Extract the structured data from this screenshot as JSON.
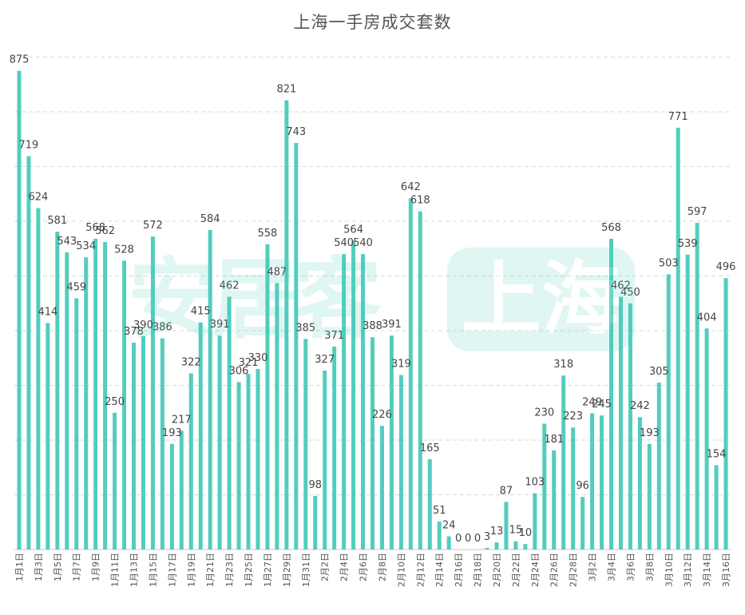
{
  "chart_data": {
    "type": "bar",
    "title": "上海一手房成交套数",
    "watermark_left": "安居客",
    "watermark_right": "上海",
    "xlabel": "",
    "ylabel": "",
    "ylim": [
      0,
      1000
    ],
    "grid": true,
    "bar_color": "#52cdbd",
    "categories": [
      "1月1日",
      "1月2日",
      "1月3日",
      "1月4日",
      "1月5日",
      "1月6日",
      "1月7日",
      "1月8日",
      "1月9日",
      "1月10日",
      "1月11日",
      "1月12日",
      "1月13日",
      "1月14日",
      "1月15日",
      "1月16日",
      "1月17日",
      "1月18日",
      "1月19日",
      "1月20日",
      "1月21日",
      "1月22日",
      "1月23日",
      "1月24日",
      "1月25日",
      "1月26日",
      "1月27日",
      "1月28日",
      "1月29日",
      "1月30日",
      "1月31日",
      "2月1日",
      "2月2日",
      "2月3日",
      "2月4日",
      "2月5日",
      "2月6日",
      "2月7日",
      "2月8日",
      "2月9日",
      "2月10日",
      "2月11日",
      "2月12日",
      "2月13日",
      "2月14日",
      "2月15日",
      "2月16日",
      "2月17日",
      "2月18日",
      "2月19日",
      "2月20日",
      "2月21日",
      "2月22日",
      "2月23日",
      "2月24日",
      "2月25日",
      "2月26日",
      "2月27日",
      "2月28日",
      "3月1日",
      "3月2日",
      "3月3日",
      "3月4日",
      "3月5日",
      "3月6日",
      "3月7日",
      "3月8日",
      "3月9日",
      "3月10日",
      "3月11日",
      "3月12日",
      "3月13日",
      "3月14日",
      "3月15日",
      "3月16日"
    ],
    "values": [
      875,
      719,
      624,
      414,
      581,
      543,
      459,
      534,
      568,
      562,
      250,
      528,
      378,
      390,
      572,
      386,
      193,
      217,
      322,
      415,
      584,
      391,
      462,
      306,
      321,
      330,
      558,
      487,
      821,
      743,
      385,
      98,
      327,
      371,
      540,
      564,
      540,
      388,
      226,
      391,
      319,
      642,
      618,
      165,
      51,
      24,
      0,
      0,
      0,
      3,
      13,
      87,
      15,
      10,
      103,
      230,
      181,
      318,
      223,
      96,
      249,
      245,
      568,
      462,
      450,
      242,
      193,
      305,
      503,
      771,
      539,
      597,
      404,
      154,
      496
    ],
    "tick_labels": [
      "1月1日",
      "1月3日",
      "1月5日",
      "1月7日",
      "1月9日",
      "1月11日",
      "1月13日",
      "1月15日",
      "1月17日",
      "1月19日",
      "1月21日",
      "1月23日",
      "1月25日",
      "1月27日",
      "1月29日",
      "1月31日",
      "2月2日",
      "2月4日",
      "2月6日",
      "2月8日",
      "2月10日",
      "2月12日",
      "2月14日",
      "2月16日",
      "2月18日",
      "2月20日",
      "2月22日",
      "2月24日",
      "2月26日",
      "2月28日",
      "3月2日",
      "3月4日",
      "3月6日",
      "3月8日",
      "3月10日",
      "3月12日",
      "3月14日",
      "3月16日"
    ]
  }
}
